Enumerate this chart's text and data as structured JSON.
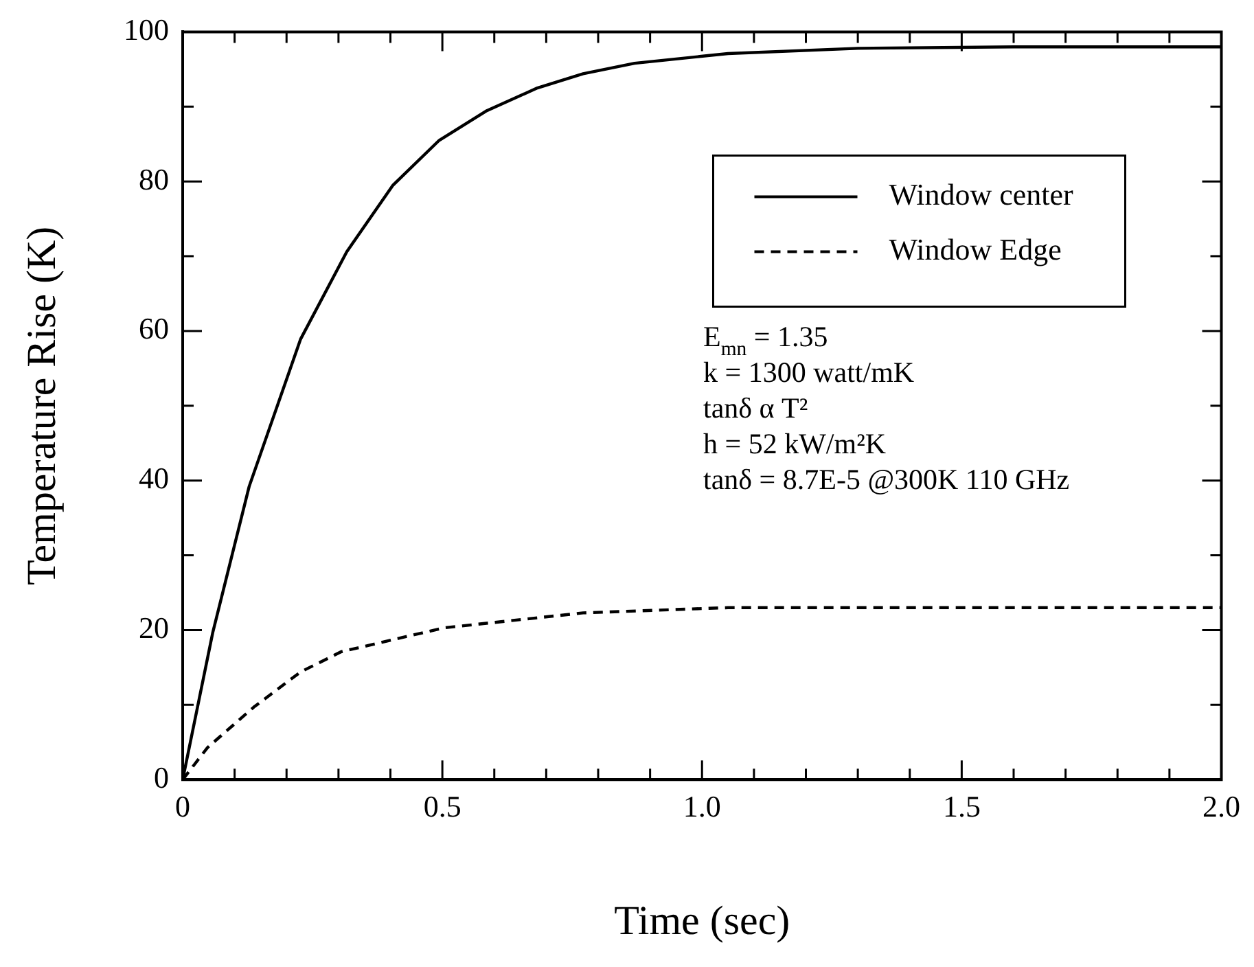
{
  "chart_data": {
    "type": "line",
    "xlabel": "Time (sec)",
    "ylabel": "Temperature Rise (K)",
    "xlim": [
      0,
      2
    ],
    "ylim": [
      0,
      100
    ],
    "xticks": [
      {
        "value": 0,
        "label": "0"
      },
      {
        "value": 0.1,
        "label": null
      },
      {
        "value": 0.2,
        "label": null
      },
      {
        "value": 0.3,
        "label": null
      },
      {
        "value": 0.4,
        "label": null
      },
      0.5,
      {
        "value": 0.6,
        "label": null
      },
      {
        "value": 0.7,
        "label": null
      },
      {
        "value": 0.8,
        "label": null
      },
      {
        "value": 0.9,
        "label": null
      },
      {
        "value": 1,
        "label": "1.0"
      },
      {
        "value": 1.1,
        "label": null
      },
      {
        "value": 1.2,
        "label": null
      },
      {
        "value": 1.3,
        "label": null
      },
      {
        "value": 1.4,
        "label": null
      },
      1.5,
      {
        "value": 1.6,
        "label": null
      },
      {
        "value": 1.7,
        "label": null
      },
      {
        "value": 1.8,
        "label": null
      },
      {
        "value": 1.9,
        "label": null
      },
      {
        "value": 2,
        "label": "2.0"
      }
    ],
    "yticks": [
      0,
      {
        "value": 10,
        "label": null
      },
      20,
      {
        "value": 30,
        "label": null
      },
      40,
      {
        "value": 50,
        "label": null
      },
      60,
      {
        "value": 70,
        "label": null
      },
      80,
      {
        "value": 90,
        "label": null
      },
      100
    ],
    "grid": false,
    "legend": "top right",
    "marker": "none",
    "series": [
      {
        "name": "Window center",
        "color": "#000000",
        "line_style": "solid",
        "x": [
          0,
          0.058,
          0.128,
          0.227,
          0.316,
          0.405,
          0.494,
          0.584,
          0.683,
          0.771,
          0.87,
          1.05,
          1.3,
          1.6,
          2.0
        ],
        "values": [
          0,
          19.7,
          39.2,
          58.9,
          70.6,
          79.5,
          85.5,
          89.4,
          92.5,
          94.4,
          95.8,
          97.1,
          97.8,
          98,
          98
        ]
      },
      {
        "name": "Window Edge",
        "color": "#000000",
        "line_style": "dashed",
        "x": [
          0,
          0.048,
          0.137,
          0.227,
          0.305,
          0.503,
          0.771,
          1.05,
          1.4,
          2.0
        ],
        "values": [
          0,
          4.3,
          9.7,
          14.4,
          17.1,
          20.3,
          22.3,
          23,
          23,
          23
        ]
      }
    ],
    "annotations": [
      "E$_{mn}$ = 1.35",
      "k = 1300 watt/mK",
      "tanδ α T²",
      "h = 52 kW/m²K",
      "tanδ = 8.7E-5 @300K 110 GHz"
    ]
  }
}
